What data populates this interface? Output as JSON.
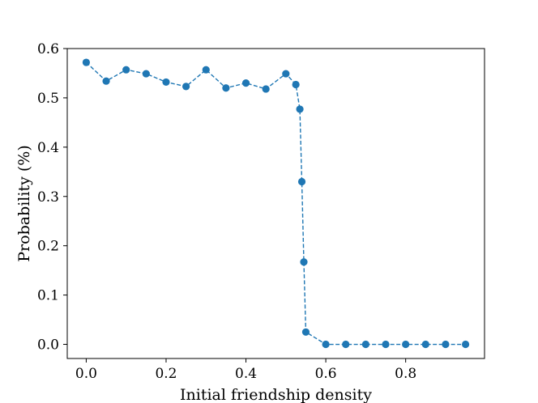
{
  "chart_data": {
    "type": "line",
    "title": "",
    "xlabel": "Initial friendship density",
    "ylabel": "Probability (%)",
    "xlim": [
      -0.0475,
      0.9975
    ],
    "ylim": [
      -0.0287,
      0.6
    ],
    "xticks": [
      0.0,
      0.2,
      0.4,
      0.6,
      0.8
    ],
    "xtick_labels": [
      "0.0",
      "0.2",
      "0.4",
      "0.6",
      "0.8"
    ],
    "yticks": [
      0.0,
      0.1,
      0.2,
      0.3,
      0.4,
      0.5,
      0.6
    ],
    "ytick_labels": [
      "0.0",
      "0.1",
      "0.2",
      "0.3",
      "0.4",
      "0.5",
      "0.6"
    ],
    "grid": false,
    "legend": "none",
    "series": [
      {
        "color": "#1f77b4",
        "line_style": "dashed",
        "marker": "circle",
        "x": [
          0.0,
          0.05,
          0.1,
          0.15,
          0.2,
          0.25,
          0.3,
          0.35,
          0.4,
          0.45,
          0.5,
          0.525,
          0.535,
          0.54,
          0.545,
          0.55,
          0.6,
          0.65,
          0.7,
          0.75,
          0.8,
          0.85,
          0.9,
          0.95
        ],
        "y": [
          0.572,
          0.534,
          0.557,
          0.549,
          0.532,
          0.523,
          0.557,
          0.52,
          0.53,
          0.518,
          0.549,
          0.527,
          0.477,
          0.33,
          0.167,
          0.025,
          0.0,
          0.0,
          0.0,
          0.0,
          0.0,
          0.0,
          0.0,
          0.0
        ]
      }
    ]
  }
}
